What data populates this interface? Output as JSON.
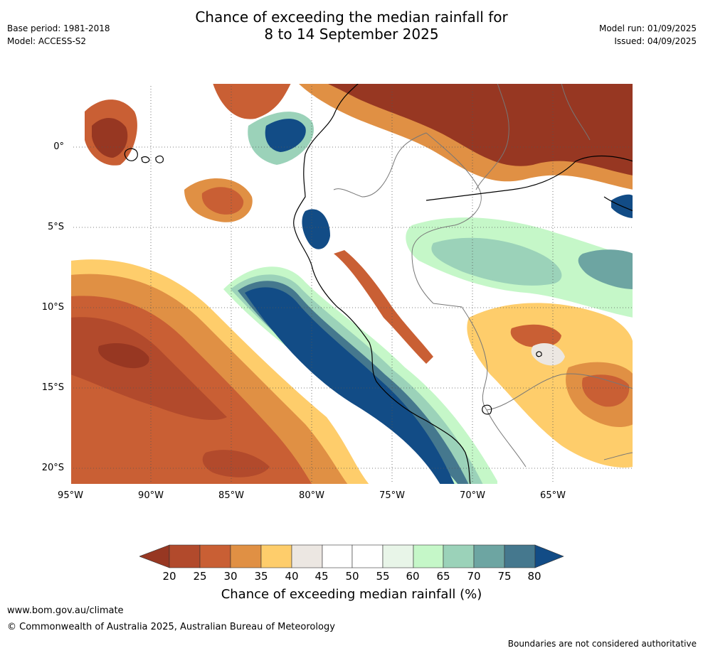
{
  "header": {
    "title_line1": "Chance of exceeding the median rainfall for",
    "title_line2": "8 to 14 September 2025",
    "base_period": "Base period: 1981-2018",
    "model": "Model: ACCESS-S2",
    "model_run": "Model run: 01/09/2025",
    "issued": "Issued: 04/09/2025"
  },
  "map": {
    "lat_ticks": [
      "0°",
      "5°S",
      "10°S",
      "15°S",
      "20°S"
    ],
    "lon_ticks": [
      "95°W",
      "90°W",
      "85°W",
      "80°W",
      "75°W",
      "70°W",
      "65°W"
    ],
    "lon_range": [
      -95,
      -60
    ],
    "lat_range": [
      -21,
      4
    ],
    "palette": {
      "20": "#973722",
      "25": "#b24a2c",
      "30": "#c95f34",
      "35": "#e09044",
      "40": "#fecd6b",
      "45": "#ece7e2",
      "50": "#ffffff",
      "55": "#ffffff",
      "60": "#e8f5e8",
      "65": "#c5f7c8",
      "70": "#9bd2b9",
      "75": "#6da5a2",
      "80": "#45788e",
      "over": "#124c86"
    }
  },
  "colorbar": {
    "labels": [
      "20",
      "25",
      "30",
      "35",
      "40",
      "45",
      "50",
      "55",
      "60",
      "65",
      "70",
      "75",
      "80"
    ],
    "title": "Chance of exceeding median rainfall (%)"
  },
  "footer": {
    "url": "www.bom.gov.au/climate",
    "copyright": "© Commonwealth of Australia 2025, Australian Bureau of Meteorology",
    "disclaimer": "Boundaries are not considered authoritative"
  }
}
